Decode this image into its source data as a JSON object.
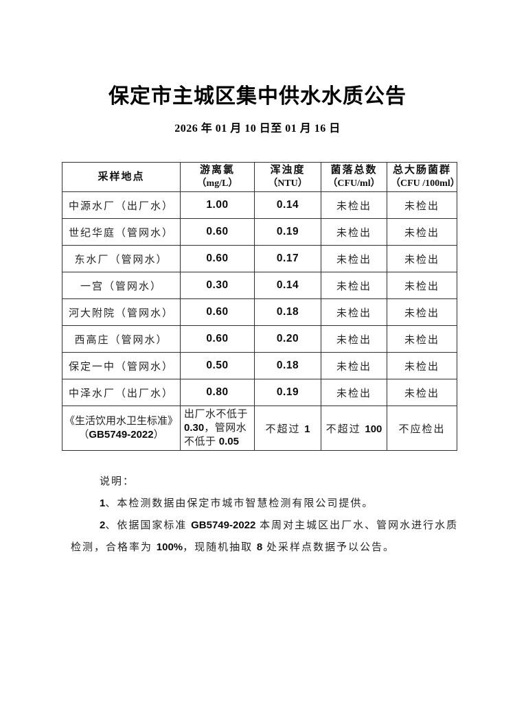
{
  "page": {
    "title": "保定市主城区集中供水水质公告",
    "date_range": "2026 年 01 月 10 日至 01 月 16 日"
  },
  "table": {
    "headers": [
      {
        "name": "采样地点",
        "unit": ""
      },
      {
        "name": "游离氯",
        "unit": "（mg/L）"
      },
      {
        "name": "浑浊度",
        "unit": "（NTU）"
      },
      {
        "name": "菌落总数",
        "unit": "（CFU/ml）"
      },
      {
        "name": "总大肠菌群",
        "unit": "（CFU /100ml）"
      }
    ],
    "rows": [
      {
        "location": "中源水厂（出厂水）",
        "chlorine": "1.00",
        "turbidity": "0.14",
        "colony": "未检出",
        "coliform": "未检出"
      },
      {
        "location": "世纪华庭（管网水）",
        "chlorine": "0.60",
        "turbidity": "0.19",
        "colony": "未检出",
        "coliform": "未检出"
      },
      {
        "location": "东水厂（管网水）",
        "chlorine": "0.60",
        "turbidity": "0.17",
        "colony": "未检出",
        "coliform": "未检出"
      },
      {
        "location": "一宫（管网水）",
        "chlorine": "0.30",
        "turbidity": "0.14",
        "colony": "未检出",
        "coliform": "未检出"
      },
      {
        "location": "河大附院（管网水）",
        "chlorine": "0.60",
        "turbidity": "0.18",
        "colony": "未检出",
        "coliform": "未检出"
      },
      {
        "location": "西高庄（管网水）",
        "chlorine": "0.60",
        "turbidity": "0.20",
        "colony": "未检出",
        "coliform": "未检出"
      },
      {
        "location": "保定一中（管网水）",
        "chlorine": "0.50",
        "turbidity": "0.18",
        "colony": "未检出",
        "coliform": "未检出"
      },
      {
        "location": "中泽水厂（出厂水）",
        "chlorine": "0.80",
        "turbidity": "0.19",
        "colony": "未检出",
        "coliform": "未检出"
      }
    ],
    "standard_row": {
      "location_line1": "《生活饮用水卫生标准》",
      "location_line2": "（GB5749-2022）",
      "chlorine": "出厂水不低于 0.30，管网水 不低于 0.05",
      "turbidity": "不超过 1",
      "colony": "不超过 100",
      "coliform": "不应检出"
    }
  },
  "notes": {
    "heading": "说明：",
    "items": [
      "1、本检测数据由保定市城市智慧检测有限公司提供。",
      "2、依据国家标准 GB5749-2022 本周对主城区出厂水、管网水进行水质检测，合格率为 100%，现随机抽取 8 处采样点数据予以公告。"
    ]
  }
}
